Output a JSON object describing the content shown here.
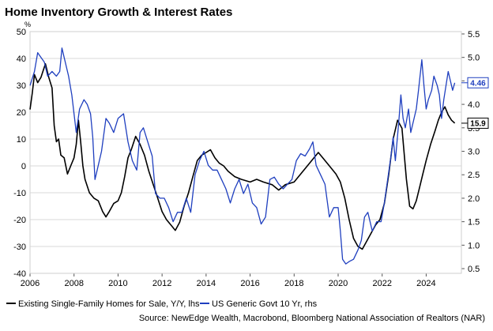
{
  "chart_data": {
    "type": "line",
    "title": "Home Inventory Growth & Interest Rates",
    "y_left_unit": "%",
    "y_left": {
      "ticks": [
        50,
        40,
        30,
        20,
        10,
        0,
        -10,
        -20,
        -30,
        -40
      ],
      "range": [
        -40,
        50
      ]
    },
    "y_right": {
      "ticks": [
        5.5,
        5.0,
        4.5,
        4.0,
        3.5,
        3.0,
        2.5,
        2.0,
        1.5,
        1.0,
        0.5
      ],
      "range": [
        0.4,
        5.55
      ]
    },
    "x": {
      "ticks": [
        "2006",
        "2008",
        "2010",
        "2012",
        "2014",
        "2016",
        "2018",
        "2020",
        "2022",
        "2024"
      ],
      "range": [
        2006,
        2025.6
      ]
    },
    "grid": "horizontal",
    "legend_position": "bottom",
    "source": "Source: NewEdge Wealth, Macrobond, Bloomberg National Association of Realtors (NAR)",
    "series": [
      {
        "name": "Existing Single-Family Homes for Sale, Y/Y, lhs",
        "axis": "left",
        "color": "#000000",
        "last_value_label": "15.9",
        "points": [
          [
            2006.0,
            21
          ],
          [
            2006.1,
            27
          ],
          [
            2006.2,
            34
          ],
          [
            2006.35,
            31
          ],
          [
            2006.5,
            33
          ],
          [
            2006.7,
            38
          ],
          [
            2006.85,
            33
          ],
          [
            2007.0,
            29
          ],
          [
            2007.1,
            15
          ],
          [
            2007.2,
            9
          ],
          [
            2007.3,
            10
          ],
          [
            2007.4,
            4
          ],
          [
            2007.55,
            3
          ],
          [
            2007.7,
            -3
          ],
          [
            2007.85,
            0
          ],
          [
            2008.0,
            3
          ],
          [
            2008.1,
            8
          ],
          [
            2008.2,
            17
          ],
          [
            2008.3,
            9
          ],
          [
            2008.4,
            0
          ],
          [
            2008.5,
            -5
          ],
          [
            2008.7,
            -10
          ],
          [
            2008.9,
            -12
          ],
          [
            2009.1,
            -13
          ],
          [
            2009.3,
            -17
          ],
          [
            2009.45,
            -19
          ],
          [
            2009.6,
            -17
          ],
          [
            2009.8,
            -14
          ],
          [
            2010.0,
            -13
          ],
          [
            2010.15,
            -10
          ],
          [
            2010.3,
            -4
          ],
          [
            2010.45,
            3
          ],
          [
            2010.6,
            6
          ],
          [
            2010.8,
            11
          ],
          [
            2011.0,
            8
          ],
          [
            2011.2,
            4
          ],
          [
            2011.4,
            -2
          ],
          [
            2011.6,
            -7
          ],
          [
            2011.8,
            -12
          ],
          [
            2012.0,
            -17
          ],
          [
            2012.2,
            -20
          ],
          [
            2012.4,
            -22
          ],
          [
            2012.6,
            -24
          ],
          [
            2012.8,
            -21
          ],
          [
            2013.0,
            -15
          ],
          [
            2013.2,
            -10
          ],
          [
            2013.4,
            -4
          ],
          [
            2013.6,
            2
          ],
          [
            2013.8,
            4
          ],
          [
            2014.0,
            5
          ],
          [
            2014.2,
            6
          ],
          [
            2014.4,
            3
          ],
          [
            2014.6,
            1
          ],
          [
            2014.8,
            0
          ],
          [
            2015.0,
            -2
          ],
          [
            2015.3,
            -4
          ],
          [
            2015.6,
            -5
          ],
          [
            2016.0,
            -6
          ],
          [
            2016.3,
            -5
          ],
          [
            2016.6,
            -6
          ],
          [
            2017.0,
            -7
          ],
          [
            2017.3,
            -9
          ],
          [
            2017.6,
            -7
          ],
          [
            2018.0,
            -6
          ],
          [
            2018.3,
            -3
          ],
          [
            2018.6,
            0
          ],
          [
            2018.9,
            3
          ],
          [
            2019.1,
            5
          ],
          [
            2019.3,
            3
          ],
          [
            2019.6,
            0
          ],
          [
            2019.9,
            -3
          ],
          [
            2020.1,
            -6
          ],
          [
            2020.3,
            -12
          ],
          [
            2020.5,
            -20
          ],
          [
            2020.7,
            -27
          ],
          [
            2020.9,
            -30
          ],
          [
            2021.1,
            -31
          ],
          [
            2021.3,
            -28
          ],
          [
            2021.5,
            -25
          ],
          [
            2021.7,
            -22
          ],
          [
            2021.9,
            -20
          ],
          [
            2022.1,
            -14
          ],
          [
            2022.3,
            -3
          ],
          [
            2022.5,
            10
          ],
          [
            2022.7,
            17
          ],
          [
            2022.9,
            14
          ],
          [
            2023.1,
            -5
          ],
          [
            2023.25,
            -15
          ],
          [
            2023.4,
            -16
          ],
          [
            2023.55,
            -13
          ],
          [
            2023.7,
            -8
          ],
          [
            2023.85,
            -3
          ],
          [
            2024.0,
            2
          ],
          [
            2024.2,
            8
          ],
          [
            2024.4,
            13
          ],
          [
            2024.55,
            17
          ],
          [
            2024.7,
            20
          ],
          [
            2024.85,
            22
          ],
          [
            2025.0,
            19
          ],
          [
            2025.15,
            17
          ],
          [
            2025.3,
            15.9
          ]
        ]
      },
      {
        "name": "US Generic Govt 10 Yr, rhs",
        "axis": "right",
        "color": "#1f3fbf",
        "last_value_label": "4.46",
        "points": [
          [
            2006.0,
            4.4
          ],
          [
            2006.2,
            4.7
          ],
          [
            2006.35,
            5.1
          ],
          [
            2006.5,
            5.0
          ],
          [
            2006.65,
            4.9
          ],
          [
            2006.8,
            4.6
          ],
          [
            2007.0,
            4.7
          ],
          [
            2007.2,
            4.6
          ],
          [
            2007.35,
            4.7
          ],
          [
            2007.45,
            5.2
          ],
          [
            2007.6,
            4.9
          ],
          [
            2007.75,
            4.6
          ],
          [
            2007.9,
            4.2
          ],
          [
            2008.0,
            3.8
          ],
          [
            2008.1,
            3.4
          ],
          [
            2008.25,
            3.9
          ],
          [
            2008.45,
            4.1
          ],
          [
            2008.6,
            4.0
          ],
          [
            2008.75,
            3.8
          ],
          [
            2008.85,
            3.3
          ],
          [
            2008.95,
            2.4
          ],
          [
            2009.05,
            2.6
          ],
          [
            2009.25,
            3.0
          ],
          [
            2009.45,
            3.7
          ],
          [
            2009.6,
            3.6
          ],
          [
            2009.8,
            3.4
          ],
          [
            2010.0,
            3.7
          ],
          [
            2010.25,
            3.8
          ],
          [
            2010.45,
            3.2
          ],
          [
            2010.65,
            2.8
          ],
          [
            2010.85,
            2.6
          ],
          [
            2011.0,
            3.4
          ],
          [
            2011.15,
            3.5
          ],
          [
            2011.35,
            3.2
          ],
          [
            2011.55,
            2.9
          ],
          [
            2011.7,
            2.1
          ],
          [
            2011.9,
            2.0
          ],
          [
            2012.1,
            2.0
          ],
          [
            2012.3,
            1.8
          ],
          [
            2012.5,
            1.5
          ],
          [
            2012.7,
            1.7
          ],
          [
            2012.9,
            1.7
          ],
          [
            2013.1,
            2.0
          ],
          [
            2013.3,
            1.7
          ],
          [
            2013.5,
            2.5
          ],
          [
            2013.7,
            2.8
          ],
          [
            2013.9,
            3.0
          ],
          [
            2014.1,
            2.7
          ],
          [
            2014.3,
            2.6
          ],
          [
            2014.5,
            2.6
          ],
          [
            2014.7,
            2.4
          ],
          [
            2014.9,
            2.2
          ],
          [
            2015.1,
            1.9
          ],
          [
            2015.3,
            2.2
          ],
          [
            2015.5,
            2.4
          ],
          [
            2015.7,
            2.1
          ],
          [
            2015.9,
            2.3
          ],
          [
            2016.1,
            1.9
          ],
          [
            2016.3,
            1.8
          ],
          [
            2016.5,
            1.45
          ],
          [
            2016.7,
            1.6
          ],
          [
            2016.9,
            2.4
          ],
          [
            2017.1,
            2.45
          ],
          [
            2017.3,
            2.3
          ],
          [
            2017.5,
            2.2
          ],
          [
            2017.7,
            2.3
          ],
          [
            2017.9,
            2.4
          ],
          [
            2018.1,
            2.8
          ],
          [
            2018.3,
            2.95
          ],
          [
            2018.5,
            2.9
          ],
          [
            2018.7,
            3.05
          ],
          [
            2018.85,
            3.2
          ],
          [
            2019.0,
            2.7
          ],
          [
            2019.2,
            2.5
          ],
          [
            2019.4,
            2.3
          ],
          [
            2019.6,
            1.6
          ],
          [
            2019.8,
            1.8
          ],
          [
            2020.0,
            1.8
          ],
          [
            2020.1,
            1.3
          ],
          [
            2020.2,
            0.7
          ],
          [
            2020.35,
            0.6
          ],
          [
            2020.5,
            0.65
          ],
          [
            2020.7,
            0.7
          ],
          [
            2020.9,
            0.9
          ],
          [
            2021.05,
            1.1
          ],
          [
            2021.2,
            1.6
          ],
          [
            2021.35,
            1.7
          ],
          [
            2021.55,
            1.3
          ],
          [
            2021.75,
            1.5
          ],
          [
            2021.95,
            1.5
          ],
          [
            2022.1,
            1.9
          ],
          [
            2022.25,
            2.4
          ],
          [
            2022.4,
            2.9
          ],
          [
            2022.5,
            3.3
          ],
          [
            2022.6,
            2.8
          ],
          [
            2022.75,
            3.6
          ],
          [
            2022.85,
            4.2
          ],
          [
            2022.95,
            3.7
          ],
          [
            2023.05,
            3.5
          ],
          [
            2023.2,
            3.9
          ],
          [
            2023.3,
            3.4
          ],
          [
            2023.45,
            3.7
          ],
          [
            2023.55,
            3.9
          ],
          [
            2023.65,
            4.3
          ],
          [
            2023.8,
            4.95
          ],
          [
            2023.9,
            4.4
          ],
          [
            2024.0,
            3.9
          ],
          [
            2024.1,
            4.1
          ],
          [
            2024.25,
            4.3
          ],
          [
            2024.35,
            4.6
          ],
          [
            2024.5,
            4.4
          ],
          [
            2024.6,
            4.2
          ],
          [
            2024.7,
            3.7
          ],
          [
            2024.8,
            4.1
          ],
          [
            2024.9,
            4.4
          ],
          [
            2025.0,
            4.7
          ],
          [
            2025.1,
            4.5
          ],
          [
            2025.2,
            4.3
          ],
          [
            2025.3,
            4.46
          ]
        ]
      }
    ]
  }
}
